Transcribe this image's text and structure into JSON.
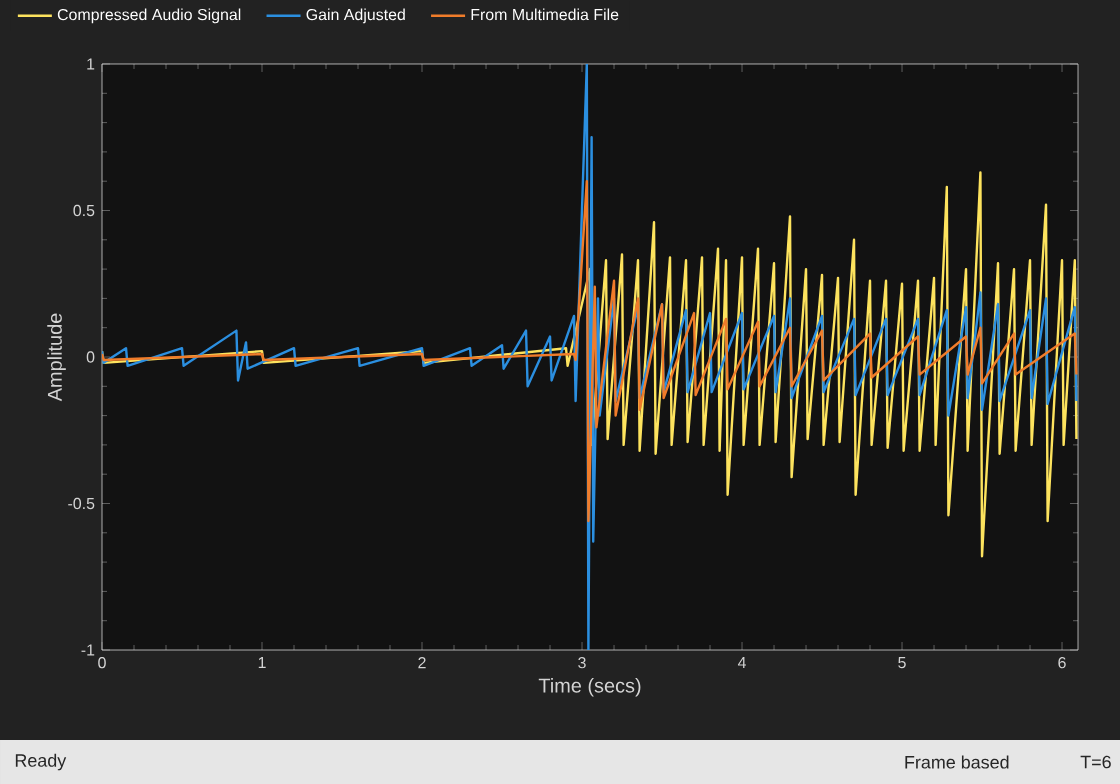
{
  "chart_data": {
    "type": "line",
    "xlabel": "Time (secs)",
    "ylabel": "Amplitude",
    "xlim": [
      0,
      6.1
    ],
    "ylim": [
      -1,
      1
    ],
    "xticks": [
      0,
      1,
      2,
      3,
      4,
      5,
      6
    ],
    "yticks": [
      -1,
      -0.5,
      0,
      0.5,
      1
    ],
    "legend": "top",
    "marker": "none",
    "line_style": "solid",
    "series": [
      {
        "name": "Compressed Audio Signal",
        "color": "#fde35e",
        "x": [
          0,
          0.01,
          1,
          1.01,
          2,
          2.01,
          2.9,
          2.91,
          3.05,
          3.06,
          3.15,
          3.16,
          3.25,
          3.26,
          3.35,
          3.36,
          3.45,
          3.46,
          3.55,
          3.56,
          3.65,
          3.66,
          3.75,
          3.76,
          3.85,
          3.86,
          3.9,
          3.91,
          4.0,
          4.01,
          4.1,
          4.11,
          4.2,
          4.21,
          4.3,
          4.31,
          4.4,
          4.41,
          4.5,
          4.51,
          4.6,
          4.61,
          4.7,
          4.71,
          4.8,
          4.81,
          4.9,
          4.91,
          5.0,
          5.01,
          5.1,
          5.11,
          5.2,
          5.21,
          5.28,
          5.29,
          5.4,
          5.41,
          5.49,
          5.5,
          5.6,
          5.61,
          5.7,
          5.71,
          5.8,
          5.81,
          5.9,
          5.91,
          6.0,
          6.01,
          6.08,
          6.09
        ],
        "values": [
          0.02,
          -0.02,
          0.02,
          -0.02,
          0.02,
          -0.02,
          0.03,
          -0.03,
          0.3,
          -0.3,
          0.33,
          -0.28,
          0.35,
          -0.3,
          0.33,
          -0.32,
          0.46,
          -0.33,
          0.34,
          -0.3,
          0.33,
          -0.29,
          0.34,
          -0.3,
          0.37,
          -0.32,
          0.33,
          -0.47,
          0.34,
          -0.3,
          0.37,
          -0.3,
          0.32,
          -0.29,
          0.48,
          -0.41,
          0.3,
          -0.28,
          0.28,
          -0.3,
          0.27,
          -0.29,
          0.4,
          -0.47,
          0.26,
          -0.3,
          0.26,
          -0.31,
          0.25,
          -0.32,
          0.26,
          -0.32,
          0.27,
          -0.3,
          0.58,
          -0.54,
          0.3,
          -0.32,
          0.63,
          -0.68,
          0.32,
          -0.33,
          0.3,
          -0.32,
          0.33,
          -0.3,
          0.52,
          -0.56,
          0.33,
          -0.3,
          0.33,
          -0.28
        ]
      },
      {
        "name": "Gain Adjusted",
        "color": "#2b8fe0",
        "x": [
          0,
          0.01,
          0.15,
          0.16,
          0.5,
          0.51,
          0.84,
          0.85,
          0.9,
          0.91,
          1.2,
          1.21,
          1.6,
          1.61,
          2.0,
          2.01,
          2.3,
          2.31,
          2.5,
          2.51,
          2.65,
          2.66,
          2.8,
          2.81,
          2.95,
          2.96,
          3.03,
          3.04,
          3.06,
          3.07,
          3.1,
          3.11,
          3.2,
          3.21,
          3.35,
          3.36,
          3.5,
          3.51,
          3.65,
          3.66,
          3.8,
          3.81,
          4.0,
          4.01,
          4.2,
          4.21,
          4.3,
          4.31,
          4.5,
          4.51,
          4.7,
          4.71,
          4.9,
          4.91,
          5.1,
          5.11,
          5.28,
          5.29,
          5.4,
          5.41,
          5.49,
          5.5,
          5.6,
          5.61,
          5.8,
          5.81,
          5.9,
          5.91,
          6.08,
          6.09
        ],
        "values": [
          0.02,
          -0.02,
          0.03,
          -0.03,
          0.03,
          -0.03,
          0.09,
          -0.08,
          0.05,
          -0.04,
          0.03,
          -0.03,
          0.03,
          -0.03,
          0.03,
          -0.03,
          0.03,
          -0.03,
          0.04,
          -0.04,
          0.09,
          -0.1,
          0.07,
          -0.08,
          0.14,
          -0.15,
          1,
          -1,
          0.75,
          -0.63,
          0.2,
          -0.2,
          0.2,
          -0.15,
          0.17,
          -0.14,
          0.18,
          -0.12,
          0.16,
          -0.12,
          0.15,
          -0.12,
          0.15,
          -0.11,
          0.14,
          -0.12,
          0.2,
          -0.14,
          0.14,
          -0.12,
          0.13,
          -0.13,
          0.13,
          -0.13,
          0.13,
          -0.13,
          0.16,
          -0.2,
          0.17,
          -0.14,
          0.22,
          -0.18,
          0.18,
          -0.15,
          0.16,
          -0.14,
          0.2,
          -0.16,
          0.17,
          -0.15
        ]
      },
      {
        "name": "From Multimedia File",
        "color": "#f07c2a",
        "x": [
          0,
          0.01,
          1,
          1.01,
          2,
          2.01,
          2.95,
          2.96,
          3.03,
          3.04,
          3.08,
          3.09,
          3.2,
          3.21,
          3.35,
          3.36,
          3.5,
          3.51,
          3.7,
          3.71,
          3.9,
          3.91,
          4.1,
          4.11,
          4.3,
          4.31,
          4.5,
          4.51,
          4.8,
          4.81,
          5.1,
          5.11,
          5.4,
          5.41,
          5.49,
          5.5,
          5.7,
          5.71,
          6.08,
          6.09
        ],
        "values": [
          0.01,
          -0.01,
          0.01,
          -0.01,
          0.01,
          -0.01,
          0.01,
          -0.01,
          0.6,
          -0.56,
          0.24,
          -0.24,
          0.26,
          -0.2,
          0.2,
          -0.18,
          0.18,
          -0.14,
          0.15,
          -0.13,
          0.13,
          -0.11,
          0.12,
          -0.1,
          0.1,
          -0.1,
          0.09,
          -0.08,
          0.08,
          -0.07,
          0.07,
          -0.06,
          0.07,
          -0.06,
          0.1,
          -0.09,
          0.08,
          -0.06,
          0.08,
          -0.06
        ]
      }
    ],
    "annotations": [
      "Ready",
      "Frame based",
      "T=6"
    ]
  }
}
